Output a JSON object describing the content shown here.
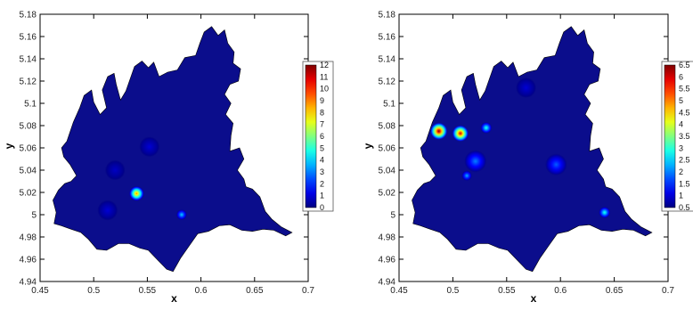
{
  "chart_data": [
    {
      "type": "heatmap",
      "xlabel": "x",
      "ylabel": "y",
      "xlim": [
        0.45,
        0.7
      ],
      "ylim": [
        4.94,
        5.18
      ],
      "x_ticks": [
        "0.45",
        "0.5",
        "0.55",
        "0.6",
        "0.65",
        "0.7"
      ],
      "y_ticks": [
        "4.94",
        "4.96",
        "4.98",
        "5",
        "5.02",
        "5.04",
        "5.06",
        "5.08",
        "5.1",
        "5.12",
        "5.14",
        "5.16",
        "5.18"
      ],
      "colorbar_labels": [
        "12",
        "11",
        "10",
        "9",
        "8",
        "7",
        "6",
        "5",
        "4",
        "3",
        "2",
        "1",
        "0"
      ],
      "colorbar_range": [
        0,
        12
      ],
      "hotspots": [
        {
          "x": 0.54,
          "y": 5.019,
          "value": 9
        },
        {
          "x": 0.582,
          "y": 5.0,
          "value": 4
        },
        {
          "x": 0.552,
          "y": 5.061,
          "value": 1
        },
        {
          "x": 0.513,
          "y": 5.004,
          "value": 1
        },
        {
          "x": 0.52,
          "y": 5.04,
          "value": 0.8
        }
      ]
    },
    {
      "type": "heatmap",
      "xlabel": "x",
      "ylabel": "y",
      "xlim": [
        0.45,
        0.7
      ],
      "ylim": [
        4.94,
        5.18
      ],
      "x_ticks": [
        "0.45",
        "0.5",
        "0.55",
        "0.6",
        "0.65",
        "0.7"
      ],
      "y_ticks": [
        "4.94",
        "4.96",
        "4.98",
        "5",
        "5.02",
        "5.04",
        "5.06",
        "5.08",
        "5.1",
        "5.12",
        "5.14",
        "5.16",
        "5.18"
      ],
      "colorbar_labels": [
        "6.5",
        "6",
        "5.5",
        "5",
        "4.5",
        "4",
        "3.5",
        "3",
        "2.5",
        "2",
        "1.5",
        "1",
        "0.5"
      ],
      "colorbar_range": [
        0.5,
        6.5
      ],
      "hotspots": [
        {
          "x": 0.487,
          "y": 5.075,
          "value": 6.5
        },
        {
          "x": 0.507,
          "y": 5.073,
          "value": 6
        },
        {
          "x": 0.531,
          "y": 5.078,
          "value": 3
        },
        {
          "x": 0.513,
          "y": 5.035,
          "value": 2.3
        },
        {
          "x": 0.521,
          "y": 5.048,
          "value": 2
        },
        {
          "x": 0.596,
          "y": 5.045,
          "value": 1.8
        },
        {
          "x": 0.641,
          "y": 5.002,
          "value": 3
        },
        {
          "x": 0.568,
          "y": 5.114,
          "value": 1
        }
      ]
    }
  ],
  "colors": {
    "background_field": "#0b0d8c",
    "frame": "#000000"
  }
}
